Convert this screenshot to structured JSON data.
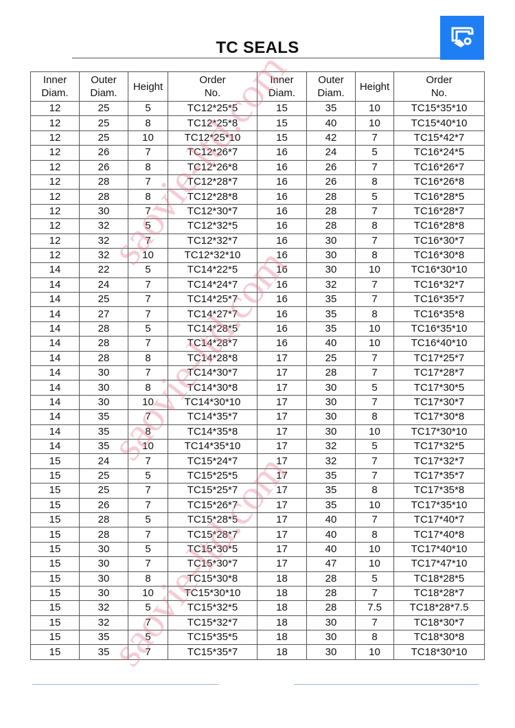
{
  "title": "TC SEALS",
  "logo": {
    "icon": "seal-cross-section-icon",
    "color": "#1e7ff5"
  },
  "watermark": "saovie-ltd.com",
  "headers": [
    "Inner Diam.",
    "Outer Diam.",
    "Height",
    "Order No.",
    "Inner Diam.",
    "Outer Diam.",
    "Height",
    "Order No."
  ],
  "rows": [
    [
      "12",
      "25",
      "5",
      "TC12*25*5",
      "15",
      "35",
      "10",
      "TC15*35*10"
    ],
    [
      "12",
      "25",
      "8",
      "TC12*25*8",
      "15",
      "40",
      "10",
      "TC15*40*10"
    ],
    [
      "12",
      "25",
      "10",
      "TC12*25*10",
      "15",
      "42",
      "7",
      "TC15*42*7"
    ],
    [
      "12",
      "26",
      "7",
      "TC12*26*7",
      "16",
      "24",
      "5",
      "TC16*24*5"
    ],
    [
      "12",
      "26",
      "8",
      "TC12*26*8",
      "16",
      "26",
      "7",
      "TC16*26*7"
    ],
    [
      "12",
      "28",
      "7",
      "TC12*28*7",
      "16",
      "26",
      "8",
      "TC16*26*8"
    ],
    [
      "12",
      "28",
      "8",
      "TC12*28*8",
      "16",
      "28",
      "5",
      "TC16*28*5"
    ],
    [
      "12",
      "30",
      "7",
      "TC12*30*7",
      "16",
      "28",
      "7",
      "TC16*28*7"
    ],
    [
      "12",
      "32",
      "5",
      "TC12*32*5",
      "16",
      "28",
      "8",
      "TC16*28*8"
    ],
    [
      "12",
      "32",
      "7",
      "TC12*32*7",
      "16",
      "30",
      "7",
      "TC16*30*7"
    ],
    [
      "12",
      "32",
      "10",
      "TC12*32*10",
      "16",
      "30",
      "8",
      "TC16*30*8"
    ],
    [
      "14",
      "22",
      "5",
      "TC14*22*5",
      "16",
      "30",
      "10",
      "TC16*30*10"
    ],
    [
      "14",
      "24",
      "7",
      "TC14*24*7",
      "16",
      "32",
      "7",
      "TC16*32*7"
    ],
    [
      "14",
      "25",
      "7",
      "TC14*25*7",
      "16",
      "35",
      "7",
      "TC16*35*7"
    ],
    [
      "14",
      "27",
      "7",
      "TC14*27*7",
      "16",
      "35",
      "8",
      "TC16*35*8"
    ],
    [
      "14",
      "28",
      "5",
      "TC14*28*5",
      "16",
      "35",
      "10",
      "TC16*35*10"
    ],
    [
      "14",
      "28",
      "7",
      "TC14*28*7",
      "16",
      "40",
      "10",
      "TC16*40*10"
    ],
    [
      "14",
      "28",
      "8",
      "TC14*28*8",
      "17",
      "25",
      "7",
      "TC17*25*7"
    ],
    [
      "14",
      "30",
      "7",
      "TC14*30*7",
      "17",
      "28",
      "7",
      "TC17*28*7"
    ],
    [
      "14",
      "30",
      "8",
      "TC14*30*8",
      "17",
      "30",
      "5",
      "TC17*30*5"
    ],
    [
      "14",
      "30",
      "10",
      "TC14*30*10",
      "17",
      "30",
      "7",
      "TC17*30*7"
    ],
    [
      "14",
      "35",
      "7",
      "TC14*35*7",
      "17",
      "30",
      "8",
      "TC17*30*8"
    ],
    [
      "14",
      "35",
      "8",
      "TC14*35*8",
      "17",
      "30",
      "10",
      "TC17*30*10"
    ],
    [
      "14",
      "35",
      "10",
      "TC14*35*10",
      "17",
      "32",
      "5",
      "TC17*32*5"
    ],
    [
      "15",
      "24",
      "7",
      "TC15*24*7",
      "17",
      "32",
      "7",
      "TC17*32*7"
    ],
    [
      "15",
      "25",
      "5",
      "TC15*25*5",
      "17",
      "35",
      "7",
      "TC17*35*7"
    ],
    [
      "15",
      "25",
      "7",
      "TC15*25*7",
      "17",
      "35",
      "8",
      "TC17*35*8"
    ],
    [
      "15",
      "26",
      "7",
      "TC15*26*7",
      "17",
      "35",
      "10",
      "TC17*35*10"
    ],
    [
      "15",
      "28",
      "5",
      "TC15*28*5",
      "17",
      "40",
      "7",
      "TC17*40*7"
    ],
    [
      "15",
      "28",
      "7",
      "TC15*28*7",
      "17",
      "40",
      "8",
      "TC17*40*8"
    ],
    [
      "15",
      "30",
      "5",
      "TC15*30*5",
      "17",
      "40",
      "10",
      "TC17*40*10"
    ],
    [
      "15",
      "30",
      "7",
      "TC15*30*7",
      "17",
      "47",
      "10",
      "TC17*47*10"
    ],
    [
      "15",
      "30",
      "8",
      "TC15*30*8",
      "18",
      "28",
      "5",
      "TC18*28*5"
    ],
    [
      "15",
      "30",
      "10",
      "TC15*30*10",
      "18",
      "28",
      "7",
      "TC18*28*7"
    ],
    [
      "15",
      "32",
      "5",
      "TC15*32*5",
      "18",
      "28",
      "7.5",
      "TC18*28*7.5"
    ],
    [
      "15",
      "32",
      "7",
      "TC15*32*7",
      "18",
      "30",
      "7",
      "TC18*30*7"
    ],
    [
      "15",
      "35",
      "5",
      "TC15*35*5",
      "18",
      "30",
      "8",
      "TC18*30*8"
    ],
    [
      "15",
      "35",
      "7",
      "TC15*35*7",
      "18",
      "30",
      "10",
      "TC18*30*10"
    ]
  ]
}
